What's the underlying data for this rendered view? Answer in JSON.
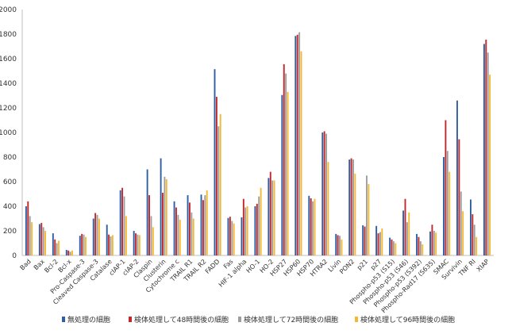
{
  "chart_data": {
    "type": "bar",
    "title": "",
    "xlabel": "",
    "ylabel": "",
    "ylim": [
      0,
      2000
    ],
    "yticks": [
      0,
      200,
      400,
      600,
      800,
      1000,
      1200,
      1400,
      1600,
      1800,
      2000
    ],
    "grid": false,
    "legend_position": "bottom",
    "categories": [
      "Bad",
      "Bax",
      "Bcl-2",
      "Bcl-x",
      "Pro-Caspase-3",
      "Cleaved Caspase-3",
      "Catalase",
      "cIAP-1",
      "cIAP-2",
      "Claspin",
      "Clusterin",
      "Cytochrome c",
      "TRAIL R1",
      "TRAIL R2",
      "FADD",
      "Fas",
      "HIF-1 alpha",
      "HO-1",
      "HO-2",
      "HSP27",
      "HSP60",
      "HSP70",
      "HTRA2",
      "Livin",
      "PON2",
      "p21",
      "p27",
      "Phospho-p53 (S15)",
      "Phospho-p53 (S46)",
      "Phospho-p53 (S392)",
      "Phospho-Rad17 (S635)",
      "SMAC",
      "Survivin",
      "TNF RI",
      "XIAP"
    ],
    "series": [
      {
        "name": "無処理の細胞",
        "color": "#2e5fa3",
        "values": [
          400,
          255,
          180,
          45,
          160,
          300,
          250,
          530,
          200,
          700,
          790,
          440,
          490,
          495,
          1515,
          305,
          310,
          400,
          630,
          1305,
          1785,
          485,
          1000,
          175,
          780,
          245,
          240,
          145,
          365,
          175,
          195,
          800,
          1260,
          455,
          1720
        ]
      },
      {
        "name": "検体処理して48時間後の細胞",
        "color": "#c0282b",
        "values": [
          440,
          265,
          130,
          40,
          175,
          345,
          170,
          550,
          180,
          490,
          510,
          390,
          430,
          450,
          1290,
          315,
          460,
          420,
          680,
          1555,
          1795,
          465,
          1010,
          165,
          790,
          235,
          180,
          130,
          460,
          150,
          250,
          1100,
          945,
          335,
          1755
        ]
      },
      {
        "name": "検体処理して72時間後の細胞",
        "color": "#9e9e9e",
        "values": [
          320,
          230,
          100,
          30,
          170,
          330,
          155,
          480,
          170,
          320,
          640,
          330,
          350,
          490,
          1050,
          280,
          390,
          480,
          610,
          1480,
          1815,
          440,
          990,
          160,
          780,
          650,
          190,
          115,
          270,
          115,
          200,
          850,
          520,
          250,
          1650
        ]
      },
      {
        "name": "検体処理して96時間後の細胞",
        "color": "#f5b830",
        "values": [
          270,
          200,
          120,
          40,
          150,
          300,
          165,
          320,
          165,
          230,
          620,
          290,
          300,
          530,
          1150,
          260,
          400,
          550,
          610,
          1330,
          1660,
          460,
          760,
          130,
          665,
          580,
          220,
          100,
          350,
          90,
          185,
          680,
          360,
          150,
          1470
        ]
      }
    ]
  }
}
